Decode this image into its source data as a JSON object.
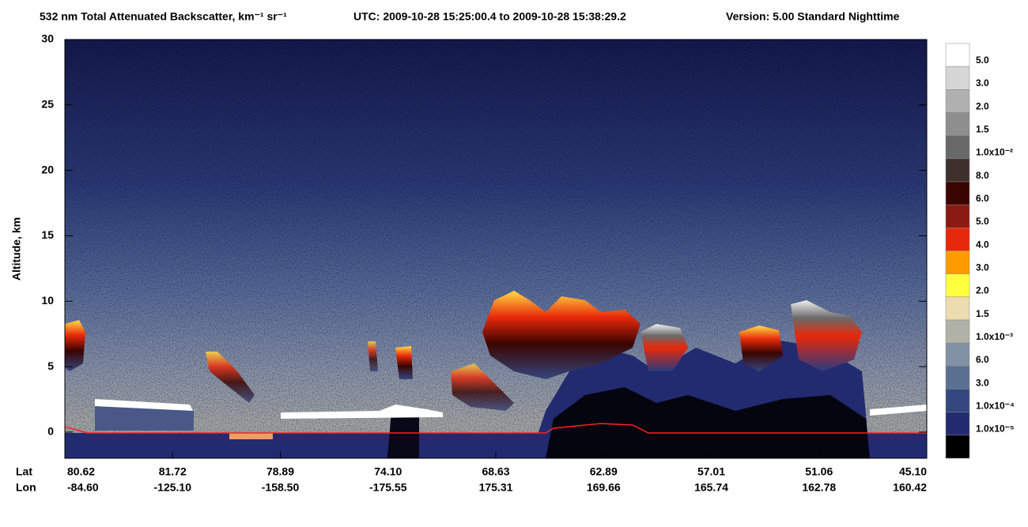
{
  "chart_data": {
    "type": "heatmap",
    "title": "532 nm Total Attenuated Backscatter, km⁻¹ sr⁻¹",
    "subtitle": "UTC:  2009-10-28 15:25:00.4  to  2009-10-28 15:38:29.2",
    "version": "Version: 5.00  Standard  Nighttime",
    "y_label": "Altitude, km",
    "ylim": [
      -2,
      30
    ],
    "yticks": [
      0,
      5,
      10,
      15,
      20,
      25,
      30
    ],
    "x_row_labels": [
      "Lat",
      "Lon"
    ],
    "lat": [
      "80.62",
      "81.72",
      "78.89",
      "74.10",
      "68.63",
      "62.89",
      "57.01",
      "51.06",
      "45.10"
    ],
    "lon": [
      "-84.60",
      "-125.10",
      "-158.50",
      "-175.55",
      "175.31",
      "169.66",
      "165.74",
      "162.78",
      "160.42"
    ],
    "colorbar": {
      "labels": [
        "5.0",
        "3.0",
        "2.0",
        "1.5",
        "1.0x10⁻²",
        "8.0",
        "6.0",
        "5.0",
        "4.0",
        "3.0",
        "2.0",
        "1.5",
        "1.0x10⁻³",
        "6.0",
        "3.0",
        "1.0x10⁻⁴",
        "1.0x10⁻⁵"
      ],
      "colors": [
        "#ffffff",
        "#d6d6d6",
        "#b0b0b0",
        "#8e8e8e",
        "#686868",
        "#3e302c",
        "#3a0400",
        "#8a1a12",
        "#e8280a",
        "#ff9a00",
        "#ffff40",
        "#ecdcb0",
        "#b0b2a8",
        "#8292a4",
        "#5a7090",
        "#34467e",
        "#222a70",
        "#000000"
      ]
    }
  }
}
